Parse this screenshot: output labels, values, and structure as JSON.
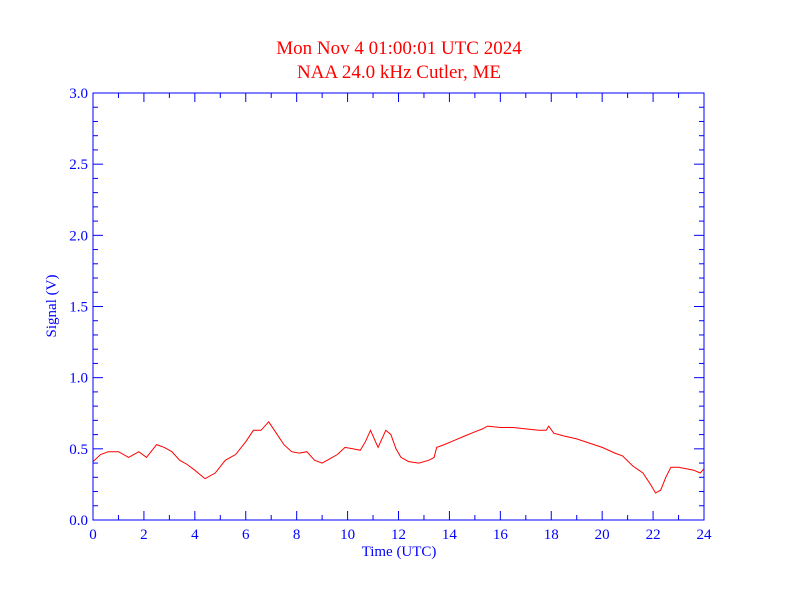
{
  "chart_data": {
    "type": "line",
    "title": "Mon Nov 4 01:00:01 UTC 2024",
    "subtitle": "NAA 24.0 kHz Cutler, ME",
    "xlabel": "Time (UTC)",
    "ylabel": "Signal (V)",
    "xlim": [
      0,
      24
    ],
    "ylim": [
      0,
      3.0
    ],
    "x_ticks": [
      "0",
      "2",
      "4",
      "6",
      "8",
      "10",
      "12",
      "14",
      "16",
      "18",
      "20",
      "22",
      "24"
    ],
    "y_ticks": [
      "0.0",
      "0.5",
      "1.0",
      "1.5",
      "2.0",
      "2.5",
      "3.0"
    ],
    "grid": false,
    "colors": {
      "axes": "#0000ff",
      "title": "#ff0000",
      "series": "#ff0000"
    },
    "series": [
      {
        "x": [
          0,
          0.3,
          0.6,
          1.0,
          1.4,
          1.8,
          2.1,
          2.5,
          2.8,
          3.1,
          3.4,
          3.7,
          4.0,
          4.4,
          4.8,
          5.2,
          5.6,
          6.0,
          6.3,
          6.6,
          6.9,
          7.2,
          7.5,
          7.8,
          8.1,
          8.4,
          8.7,
          9.0,
          9.3,
          9.6,
          9.9,
          10.2,
          10.5,
          10.7,
          10.9,
          11.05,
          11.2,
          11.5,
          11.7,
          11.9,
          12.1,
          12.4,
          12.8,
          13.2,
          13.4,
          13.5,
          13.8,
          14.2,
          14.6,
          15.0,
          15.3,
          15.5,
          16.0,
          16.5,
          17.0,
          17.5,
          17.8,
          17.9,
          18.1,
          18.5,
          19.0,
          19.5,
          20.0,
          20.5,
          20.8,
          21.2,
          21.6,
          21.9,
          22.1,
          22.3,
          22.5,
          22.7,
          23.0,
          23.3,
          23.6,
          23.85,
          24.0
        ],
        "y": [
          0.41,
          0.46,
          0.48,
          0.48,
          0.44,
          0.48,
          0.44,
          0.53,
          0.51,
          0.48,
          0.42,
          0.39,
          0.35,
          0.29,
          0.33,
          0.42,
          0.46,
          0.55,
          0.63,
          0.63,
          0.69,
          0.61,
          0.53,
          0.48,
          0.47,
          0.48,
          0.42,
          0.4,
          0.43,
          0.46,
          0.51,
          0.5,
          0.49,
          0.55,
          0.63,
          0.57,
          0.51,
          0.63,
          0.6,
          0.5,
          0.44,
          0.41,
          0.4,
          0.42,
          0.44,
          0.51,
          0.53,
          0.56,
          0.59,
          0.62,
          0.64,
          0.66,
          0.65,
          0.65,
          0.64,
          0.63,
          0.63,
          0.66,
          0.61,
          0.59,
          0.57,
          0.54,
          0.51,
          0.47,
          0.45,
          0.38,
          0.33,
          0.25,
          0.19,
          0.21,
          0.3,
          0.37,
          0.37,
          0.36,
          0.35,
          0.33,
          0.36
        ]
      }
    ]
  }
}
